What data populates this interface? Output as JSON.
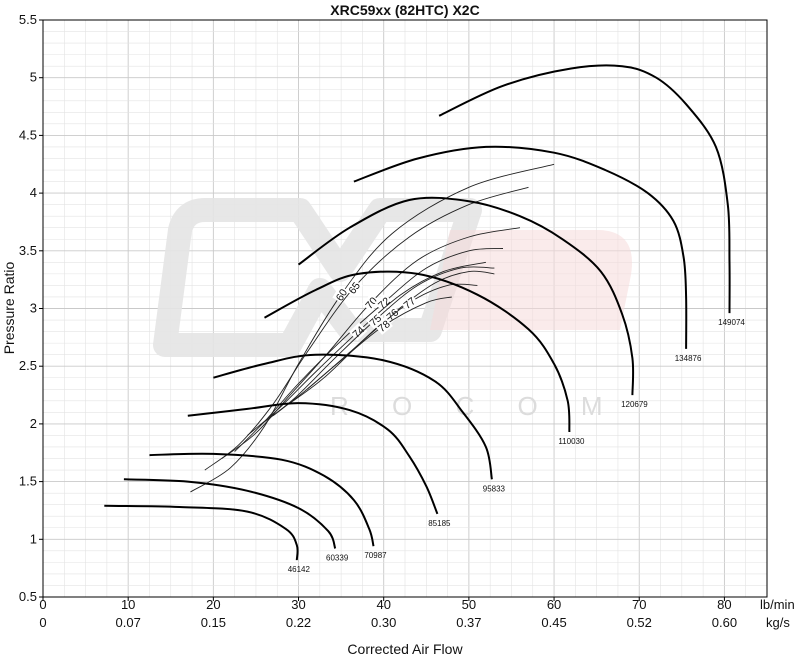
{
  "chart_data": {
    "type": "line",
    "title": "XRC59xx (82HTC) X2C",
    "xlabel": "Corrected Air Flow",
    "ylabel": "Pressure Ratio",
    "xlim": [
      0,
      85
    ],
    "ylim": [
      0.5,
      5.5
    ],
    "grid": true,
    "x_ticks": [
      0,
      10,
      20,
      30,
      40,
      50,
      60,
      70,
      80
    ],
    "x_unit_primary": "lb/min",
    "x_ticks_secondary": [
      "0",
      "0.07",
      "0.15",
      "0.22",
      "0.30",
      "0.37",
      "0.45",
      "0.52",
      "0.60"
    ],
    "x_unit_secondary": "kg/s",
    "y_ticks": [
      0.5,
      1,
      1.5,
      2,
      2.5,
      3,
      3.5,
      4,
      4.5,
      5,
      5.5
    ],
    "watermark": {
      "text": "R O C O M"
    },
    "speed_lines": [
      {
        "label": "46142",
        "points": [
          [
            7.2,
            1.29
          ],
          [
            16,
            1.28
          ],
          [
            24,
            1.24
          ],
          [
            28.5,
            1.09
          ],
          [
            29.8,
            0.95
          ],
          [
            29.8,
            0.82
          ]
        ]
      },
      {
        "label": "60339",
        "points": [
          [
            9.5,
            1.52
          ],
          [
            17,
            1.5
          ],
          [
            24,
            1.42
          ],
          [
            30,
            1.27
          ],
          [
            33.5,
            1.07
          ],
          [
            34.3,
            0.92
          ]
        ]
      },
      {
        "label": "70987",
        "points": [
          [
            12.5,
            1.73
          ],
          [
            20,
            1.74
          ],
          [
            28,
            1.69
          ],
          [
            33,
            1.55
          ],
          [
            36.5,
            1.34
          ],
          [
            38.3,
            1.09
          ],
          [
            38.8,
            0.94
          ]
        ]
      },
      {
        "label": "85185",
        "points": [
          [
            17,
            2.07
          ],
          [
            24,
            2.13
          ],
          [
            30,
            2.18
          ],
          [
            36,
            2.12
          ],
          [
            40.5,
            1.95
          ],
          [
            43,
            1.72
          ],
          [
            45,
            1.46
          ],
          [
            46.3,
            1.22
          ]
        ]
      },
      {
        "label": "95833",
        "points": [
          [
            20,
            2.4
          ],
          [
            26,
            2.52
          ],
          [
            32,
            2.6
          ],
          [
            40,
            2.55
          ],
          [
            46,
            2.37
          ],
          [
            49.3,
            2.1
          ],
          [
            52,
            1.8
          ],
          [
            52.7,
            1.52
          ]
        ]
      },
      {
        "label": "110030",
        "points": [
          [
            26,
            2.92
          ],
          [
            32,
            3.16
          ],
          [
            37,
            3.3
          ],
          [
            44,
            3.3
          ],
          [
            51,
            3.12
          ],
          [
            57,
            2.82
          ],
          [
            60,
            2.52
          ],
          [
            61.6,
            2.2
          ],
          [
            61.8,
            1.93
          ]
        ]
      },
      {
        "label": "120679",
        "points": [
          [
            30,
            3.38
          ],
          [
            36,
            3.7
          ],
          [
            43,
            3.94
          ],
          [
            50,
            3.93
          ],
          [
            56,
            3.8
          ],
          [
            61,
            3.6
          ],
          [
            65.5,
            3.32
          ],
          [
            68,
            2.95
          ],
          [
            69.2,
            2.57
          ],
          [
            69.2,
            2.25
          ]
        ]
      },
      {
        "label": "134876",
        "points": [
          [
            36.5,
            4.1
          ],
          [
            44,
            4.3
          ],
          [
            52,
            4.4
          ],
          [
            60,
            4.35
          ],
          [
            66,
            4.2
          ],
          [
            71,
            4.0
          ],
          [
            74,
            3.76
          ],
          [
            75.2,
            3.45
          ],
          [
            75.5,
            3.1
          ],
          [
            75.5,
            2.65
          ]
        ]
      },
      {
        "label": "149074",
        "points": [
          [
            46.5,
            4.67
          ],
          [
            54,
            4.93
          ],
          [
            62,
            5.08
          ],
          [
            68,
            5.1
          ],
          [
            72,
            5.0
          ],
          [
            75.5,
            4.77
          ],
          [
            79,
            4.4
          ],
          [
            80.4,
            3.9
          ],
          [
            80.6,
            3.4
          ],
          [
            80.6,
            2.96
          ]
        ]
      }
    ],
    "efficiency_islands": [
      {
        "label": "60",
        "points": [
          [
            17.3,
            1.41
          ],
          [
            22,
            1.62
          ],
          [
            26,
            1.98
          ],
          [
            30,
            2.52
          ],
          [
            35,
            3.12
          ],
          [
            41,
            3.65
          ],
          [
            50,
            4.05
          ],
          [
            60,
            4.25
          ]
        ]
      },
      {
        "label": "65",
        "points": [
          [
            19,
            1.6
          ],
          [
            23,
            1.82
          ],
          [
            27,
            2.17
          ],
          [
            31,
            2.62
          ],
          [
            36.5,
            3.18
          ],
          [
            43,
            3.62
          ],
          [
            50,
            3.9
          ],
          [
            57,
            4.05
          ]
        ]
      },
      {
        "label": "70",
        "points": [
          [
            21,
            1.7
          ],
          [
            25,
            1.92
          ],
          [
            29,
            2.25
          ],
          [
            33.5,
            2.62
          ],
          [
            38.5,
            3.05
          ],
          [
            44,
            3.42
          ],
          [
            50,
            3.62
          ],
          [
            56,
            3.7
          ]
        ]
      },
      {
        "label": "72",
        "points": [
          [
            22.5,
            1.76
          ],
          [
            26,
            2.02
          ],
          [
            30,
            2.35
          ],
          [
            35,
            2.72
          ],
          [
            40,
            3.05
          ],
          [
            45,
            3.35
          ],
          [
            50,
            3.5
          ],
          [
            54,
            3.52
          ]
        ]
      },
      {
        "label": "74",
        "points": [
          [
            24,
            1.9
          ],
          [
            27.5,
            2.12
          ],
          [
            32,
            2.45
          ],
          [
            37,
            2.8
          ],
          [
            42,
            3.12
          ],
          [
            47,
            3.32
          ],
          [
            52,
            3.4
          ]
        ]
      },
      {
        "label": "75",
        "points": [
          [
            25.5,
            1.99
          ],
          [
            29.5,
            2.22
          ],
          [
            34,
            2.55
          ],
          [
            39,
            2.9
          ],
          [
            44,
            3.2
          ],
          [
            49,
            3.35
          ],
          [
            53,
            3.35
          ]
        ]
      },
      {
        "label": "76",
        "points": [
          [
            27,
            2.07
          ],
          [
            31,
            2.3
          ],
          [
            36,
            2.62
          ],
          [
            41,
            2.95
          ],
          [
            46,
            3.22
          ],
          [
            50,
            3.32
          ],
          [
            53,
            3.3
          ]
        ]
      },
      {
        "label": "77",
        "points": [
          [
            29,
            2.18
          ],
          [
            33,
            2.4
          ],
          [
            38,
            2.75
          ],
          [
            43,
            3.05
          ],
          [
            47.5,
            3.2
          ],
          [
            51,
            3.2
          ]
        ]
      },
      {
        "label": "78",
        "points": [
          [
            31,
            2.3
          ],
          [
            35,
            2.55
          ],
          [
            40,
            2.85
          ],
          [
            45,
            3.05
          ],
          [
            48,
            3.1
          ]
        ]
      }
    ]
  }
}
